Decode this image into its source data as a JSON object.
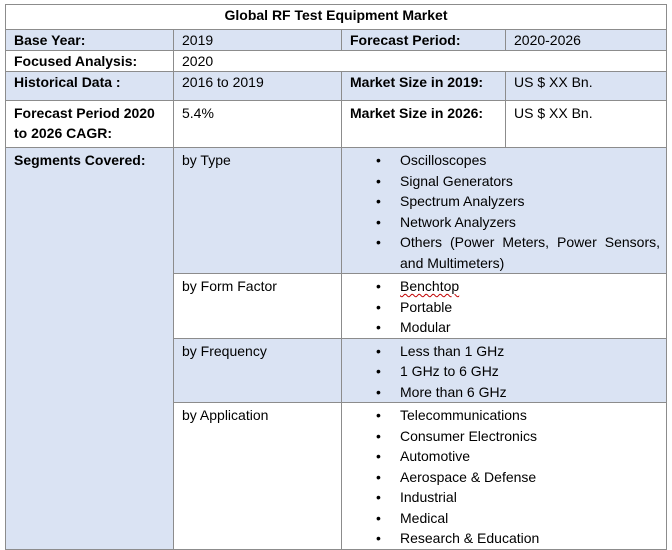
{
  "title": "Global RF Test Equipment Market",
  "rows": {
    "base_year_label": "Base Year:",
    "base_year_value": "2019",
    "forecast_period_label": "Forecast Period:",
    "forecast_period_value": "2020-2026",
    "focused_analysis_label": "Focused Analysis:",
    "focused_analysis_value": "2020",
    "historical_data_label": "Historical Data :",
    "historical_data_value": "2016 to 2019",
    "market_size_2019_label": "Market Size in 2019:",
    "market_size_2019_value": "US $ XX Bn.",
    "cagr_label_line1": "Forecast Period 2020",
    "cagr_label_line2": "to 2026 CAGR:",
    "cagr_value": "5.4%",
    "market_size_2026_label": "Market Size in 2026:",
    "market_size_2026_value": "US $ XX Bn."
  },
  "segments_label": "Segments Covered:",
  "bullet_char": "•",
  "segments": [
    {
      "label": "by Type",
      "items": [
        "Oscilloscopes",
        "Signal Generators",
        "Spectrum Analyzers",
        "Network Analyzers",
        "Others (Power Meters, Power Sensors, and Multimeters)"
      ]
    },
    {
      "label": "by Form Factor",
      "items": [
        "Benchtop",
        "Portable",
        "Modular"
      ]
    },
    {
      "label": "by Frequency",
      "items": [
        "Less than 1 GHz",
        "1 GHz to 6 GHz",
        "More than 6 GHz"
      ]
    },
    {
      "label": "by Application",
      "items": [
        "Telecommunications",
        "Consumer Electronics",
        "Automotive",
        "Aerospace & Defense",
        "Industrial",
        "Medical",
        "Research & Education"
      ]
    }
  ]
}
